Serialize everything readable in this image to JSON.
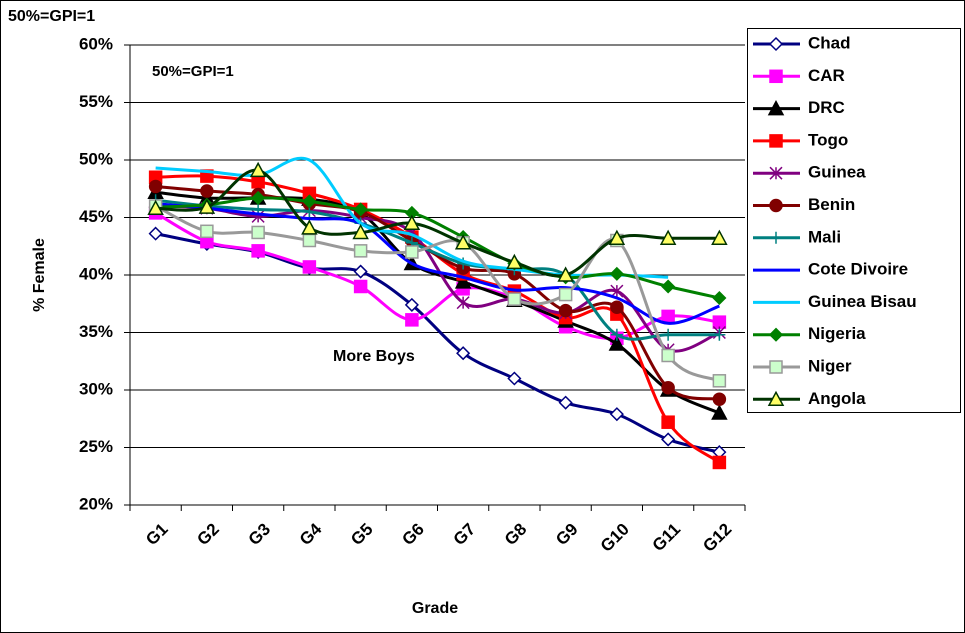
{
  "chart_data": {
    "type": "line",
    "title": "50%=GPI=1",
    "annotations": [
      "50%=GPI=1",
      "More Boys"
    ],
    "xlabel": "Grade",
    "ylabel": "% Female",
    "categories": [
      "G1",
      "G2",
      "G3",
      "G4",
      "G5",
      "G6",
      "G7",
      "G8",
      "G9",
      "G10",
      "G11",
      "G12"
    ],
    "ylim": [
      20,
      60
    ],
    "yticks": [
      {
        "value": 20,
        "label": "20%"
      },
      {
        "value": 25,
        "label": "25%"
      },
      {
        "value": 30,
        "label": "30%"
      },
      {
        "value": 35,
        "label": "35%"
      },
      {
        "value": 40,
        "label": "40%"
      },
      {
        "value": 45,
        "label": "45%"
      },
      {
        "value": 50,
        "label": "50%"
      },
      {
        "value": 55,
        "label": "55%"
      },
      {
        "value": 60,
        "label": "60%"
      }
    ],
    "grid": true,
    "smooth": true,
    "legend": "right",
    "series": [
      {
        "name": "Chad",
        "color": "#000080",
        "marker": "diamond",
        "marker_color": "#ffffff",
        "values": [
          43.6,
          42.7,
          42.0,
          40.6,
          40.3,
          37.4,
          33.2,
          31.0,
          28.9,
          27.9,
          25.7,
          24.6
        ]
      },
      {
        "name": "CAR",
        "color": "#ff00ff",
        "marker": "square",
        "values": [
          45.4,
          42.9,
          42.1,
          40.7,
          39.0,
          36.1,
          38.8,
          38.0,
          35.5,
          34.5,
          36.4,
          35.9
        ]
      },
      {
        "name": "DRC",
        "color": "#000000",
        "marker": "triangle",
        "values": [
          47.2,
          46.7,
          46.7,
          46.6,
          45.4,
          41.0,
          39.4,
          37.8,
          36.0,
          34.0,
          30.0,
          28.0
        ]
      },
      {
        "name": "Togo",
        "color": "#ff0000",
        "marker": "square",
        "values": [
          48.5,
          48.6,
          48.1,
          47.1,
          45.7,
          43.3,
          40.1,
          38.6,
          36.3,
          36.6,
          27.2,
          23.7
        ]
      },
      {
        "name": "Guinea",
        "color": "#800080",
        "marker": "star",
        "values": [
          46.0,
          45.8,
          45.1,
          45.6,
          45.0,
          43.7,
          37.6,
          37.9,
          36.7,
          38.6,
          33.5,
          35.0
        ]
      },
      {
        "name": "Benin",
        "color": "#800000",
        "marker": "circle",
        "values": [
          47.7,
          47.3,
          47.0,
          46.2,
          45.5,
          43.0,
          40.6,
          40.1,
          36.9,
          37.2,
          30.2,
          29.2
        ]
      },
      {
        "name": "Mali",
        "color": "#008080",
        "marker": "plus",
        "values": [
          46.5,
          46.0,
          45.7,
          45.5,
          44.5,
          42.8,
          41.0,
          40.5,
          40.0,
          34.8,
          34.8,
          34.8
        ]
      },
      {
        "name": "Cote Divoire",
        "color": "#0000ff",
        "marker": "none",
        "values": [
          46.2,
          45.8,
          45.3,
          44.9,
          44.5,
          41.0,
          39.8,
          38.7,
          38.9,
          38.0,
          35.8,
          37.3
        ]
      },
      {
        "name": "Guinea Bisau",
        "color": "#00ccff",
        "marker": "none",
        "values": [
          49.3,
          49.0,
          48.7,
          50.0,
          44.5,
          43.5,
          41.2,
          40.5,
          40.0,
          40.0,
          39.8,
          null
        ]
      },
      {
        "name": "Nigeria",
        "color": "#008000",
        "marker": "diamond",
        "values": [
          45.9,
          46.1,
          46.7,
          46.4,
          45.7,
          45.4,
          43.3,
          41.0,
          39.8,
          40.1,
          39.0,
          38.0
        ]
      },
      {
        "name": "Niger",
        "color": "#999999",
        "marker": "square",
        "marker_color": "#ccffcc",
        "values": [
          46.0,
          43.8,
          43.7,
          43.0,
          42.1,
          42.0,
          42.8,
          37.9,
          38.3,
          43.0,
          33.0,
          30.8
        ]
      },
      {
        "name": "Angola",
        "color": "#003300",
        "marker": "triangle",
        "marker_color": "#ffff66",
        "values": [
          45.8,
          45.9,
          49.1,
          44.1,
          43.7,
          44.5,
          42.8,
          41.1,
          40.0,
          43.2,
          43.2,
          43.2
        ]
      }
    ]
  }
}
